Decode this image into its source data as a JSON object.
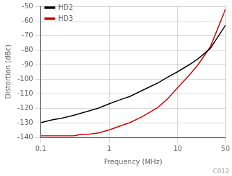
{
  "chart_data": {
    "type": "line",
    "xlabel": "Frequency (MHz)",
    "ylabel": "Distortion (dBc)",
    "log": "x",
    "xlim": [
      0.1,
      50
    ],
    "xticks": [
      0.1,
      1,
      10,
      50
    ],
    "ylim": [
      -140,
      -50
    ],
    "yticks": [
      -140,
      -130,
      -120,
      -110,
      -100,
      -90,
      -80,
      -70,
      -60,
      -50
    ],
    "grid": true,
    "legend": "upper left",
    "annotations": [
      "C012"
    ],
    "series": [
      {
        "name": "HD2",
        "color": "#000000",
        "x": [
          0.1,
          0.15,
          0.2,
          0.3,
          0.5,
          0.7,
          1.0,
          1.5,
          2.0,
          3.0,
          5.0,
          7.0,
          10.0,
          15.0,
          20.0,
          30.0,
          50.0
        ],
        "values": [
          -130,
          -128,
          -127,
          -125,
          -122,
          -120,
          -117,
          -114,
          -112,
          -108,
          -103,
          -99,
          -95,
          -90,
          -86,
          -79,
          -63
        ]
      },
      {
        "name": "HD3",
        "color": "#cc0000",
        "x": [
          0.1,
          0.15,
          0.2,
          0.3,
          0.4,
          0.5,
          0.7,
          1.0,
          1.5,
          2.0,
          3.0,
          5.0,
          7.0,
          10.0,
          15.0,
          20.0,
          30.0,
          50.0
        ],
        "values": [
          -139,
          -139,
          -139,
          -139,
          -138,
          -138,
          -137,
          -135,
          -132,
          -130,
          -126,
          -120,
          -114,
          -106,
          -97,
          -90,
          -78,
          -52
        ]
      }
    ]
  }
}
